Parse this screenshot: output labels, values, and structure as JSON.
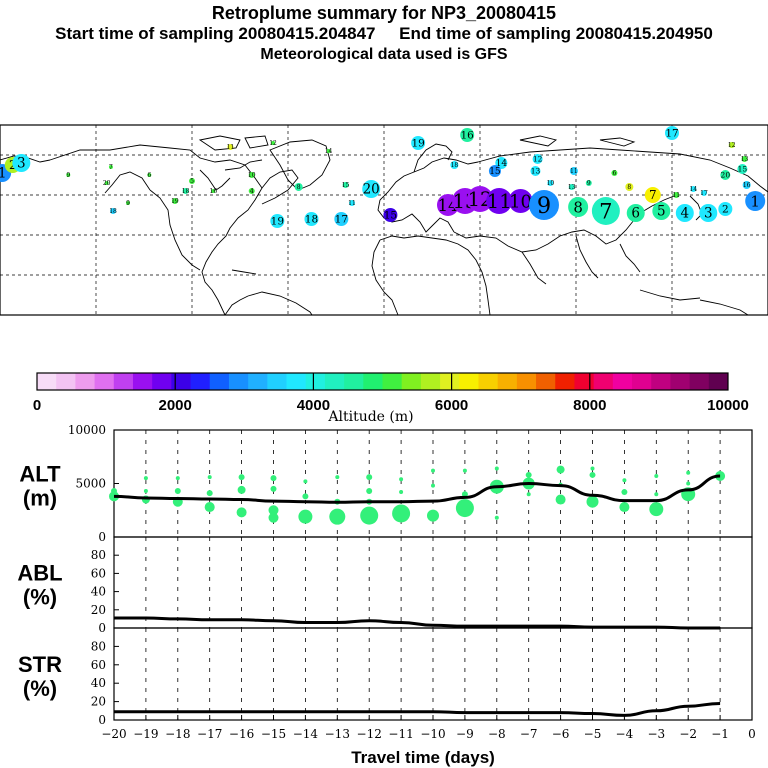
{
  "header": {
    "title": "Retroplume summary for NP3_20080415",
    "sampling": "Start time of sampling 20080415.204847     End time of sampling 20080415.204950",
    "met": "Meteorological data used is GFS"
  },
  "colorbar": {
    "label": "Altitude (m)",
    "ticks": [
      "0",
      "2000",
      "4000",
      "6000",
      "8000",
      "10000"
    ],
    "tick_values": [
      0,
      2000,
      4000,
      6000,
      8000,
      10000
    ],
    "colors": [
      "#f7dcf7",
      "#f3c3f3",
      "#ee9cee",
      "#e070f0",
      "#c040f0",
      "#9a10f0",
      "#7000f0",
      "#3c00e8",
      "#2020ff",
      "#1060ff",
      "#1890ff",
      "#20b0ff",
      "#20d0ff",
      "#20e8ff",
      "#20f0e0",
      "#20f0c0",
      "#20f0a0",
      "#20f070",
      "#40f040",
      "#80f020",
      "#b0f020",
      "#e0f020",
      "#f8f000",
      "#f8d000",
      "#f8b000",
      "#f89000",
      "#f06000",
      "#f02000",
      "#f00030",
      "#f00070",
      "#f000a0",
      "#e00090",
      "#c00080",
      "#a00070",
      "#800060",
      "#600050"
    ]
  },
  "map": {
    "labels": [
      {
        "t": "1",
        "lon": -179,
        "lat": 71,
        "c": "#1890ff",
        "s": 9
      },
      {
        "t": "2",
        "lon": -174,
        "lat": 75,
        "c": "#b0f020",
        "s": 8
      },
      {
        "t": "3",
        "lon": -170,
        "lat": 76,
        "c": "#20e8ff",
        "s": 9
      },
      {
        "t": "4",
        "lon": -62,
        "lat": 62,
        "c": "#40f040",
        "s": 3
      },
      {
        "t": "5",
        "lon": -90,
        "lat": 67,
        "c": "#40f040",
        "s": 3
      },
      {
        "t": "6",
        "lon": -110,
        "lat": 70,
        "c": "#40f040",
        "s": 2
      },
      {
        "t": "7",
        "lon": -128,
        "lat": 74,
        "c": "#40f040",
        "s": 2
      },
      {
        "t": "8",
        "lon": -40,
        "lat": 64,
        "c": "#20f0a0",
        "s": 4
      },
      {
        "t": "9",
        "lon": -148,
        "lat": 70,
        "c": "#40f040",
        "s": 2
      },
      {
        "t": "10",
        "lon": -62,
        "lat": 70,
        "c": "#40f040",
        "s": 3
      },
      {
        "t": "11",
        "lon": -72,
        "lat": 84,
        "c": "#e0f020",
        "s": 3
      },
      {
        "t": "12",
        "lon": -52,
        "lat": 86,
        "c": "#40f040",
        "s": 2
      },
      {
        "t": "14",
        "lon": -26,
        "lat": 82,
        "c": "#40f040",
        "s": 2
      },
      {
        "t": "15",
        "lon": -18,
        "lat": 65,
        "c": "#20f0a0",
        "s": 3
      },
      {
        "t": "16",
        "lon": -80,
        "lat": 62,
        "c": "#40f040",
        "s": 2
      },
      {
        "t": "18",
        "lon": -93,
        "lat": 62,
        "c": "#20f0a0",
        "s": 3
      },
      {
        "t": "19",
        "lon": -98,
        "lat": 57,
        "c": "#40f040",
        "s": 3
      },
      {
        "t": "18",
        "lon": -127,
        "lat": 52,
        "c": "#20d0ff",
        "s": 3
      },
      {
        "t": "11",
        "lon": -15,
        "lat": 56,
        "c": "#20e8ff",
        "s": 3
      },
      {
        "t": "19",
        "lon": -50,
        "lat": 47,
        "c": "#20e8ff",
        "s": 7
      },
      {
        "t": "18",
        "lon": -34,
        "lat": 48,
        "c": "#20e8ff",
        "s": 7
      },
      {
        "t": "17",
        "lon": -20,
        "lat": 48,
        "c": "#20d0ff",
        "s": 7
      },
      {
        "t": "20",
        "lon": -6,
        "lat": 63,
        "c": "#20e8ff",
        "s": 9
      },
      {
        "t": "15",
        "lon": 3,
        "lat": 50,
        "c": "#3c00e8",
        "s": 7
      },
      {
        "t": "14",
        "lon": 30,
        "lat": 55,
        "c": "#9a10f0",
        "s": 11
      },
      {
        "t": "13",
        "lon": 38,
        "lat": 57,
        "c": "#9a10f0",
        "s": 13
      },
      {
        "t": "12",
        "lon": 45,
        "lat": 58,
        "c": "#9a10f0",
        "s": 13
      },
      {
        "t": "11",
        "lon": 54,
        "lat": 57,
        "c": "#7000f0",
        "s": 13
      },
      {
        "t": "10",
        "lon": 64,
        "lat": 57,
        "c": "#7000f0",
        "s": 12
      },
      {
        "t": "9",
        "lon": 75,
        "lat": 55,
        "c": "#1890ff",
        "s": 15
      },
      {
        "t": "8",
        "lon": 91,
        "lat": 54,
        "c": "#20f0a0",
        "s": 10
      },
      {
        "t": "7",
        "lon": 104,
        "lat": 52,
        "c": "#20f0c0",
        "s": 14
      },
      {
        "t": "6",
        "lon": 118,
        "lat": 51,
        "c": "#20f0a0",
        "s": 9
      },
      {
        "t": "5",
        "lon": 130,
        "lat": 52,
        "c": "#20f0a0",
        "s": 9
      },
      {
        "t": "4",
        "lon": 141,
        "lat": 51,
        "c": "#20e8ff",
        "s": 9
      },
      {
        "t": "3",
        "lon": 152,
        "lat": 51,
        "c": "#20e8ff",
        "s": 9
      },
      {
        "t": "2",
        "lon": 160,
        "lat": 53,
        "c": "#20e8ff",
        "s": 7
      },
      {
        "t": "1",
        "lon": 174,
        "lat": 57,
        "c": "#1890ff",
        "s": 10
      },
      {
        "t": "19",
        "lon": 16,
        "lat": 86,
        "c": "#20e8ff",
        "s": 7
      },
      {
        "t": "16",
        "lon": 39,
        "lat": 90,
        "c": "#20f0a0",
        "s": 7
      },
      {
        "t": "18",
        "lon": 33,
        "lat": 75,
        "c": "#20e8ff",
        "s": 4
      },
      {
        "t": "14",
        "lon": 55,
        "lat": 76,
        "c": "#20e8ff",
        "s": 6
      },
      {
        "t": "15",
        "lon": 52,
        "lat": 72,
        "c": "#1890ff",
        "s": 6
      },
      {
        "t": "13",
        "lon": 71,
        "lat": 72,
        "c": "#20e8ff",
        "s": 5
      },
      {
        "t": "12",
        "lon": 72,
        "lat": 78,
        "c": "#20e8ff",
        "s": 5
      },
      {
        "t": "11",
        "lon": 89,
        "lat": 72,
        "c": "#20d0ff",
        "s": 4
      },
      {
        "t": "17",
        "lon": 135,
        "lat": 91,
        "c": "#20e8ff",
        "s": 7
      },
      {
        "t": "12",
        "lon": 163,
        "lat": 85,
        "c": "#b0f020",
        "s": 3
      },
      {
        "t": "20",
        "lon": 160,
        "lat": 70,
        "c": "#20f0a0",
        "s": 5
      },
      {
        "t": "13",
        "lon": 169,
        "lat": 78,
        "c": "#40f040",
        "s": 3
      },
      {
        "t": "15",
        "lon": 168,
        "lat": 73,
        "c": "#20f0c0",
        "s": 5
      },
      {
        "t": "16",
        "lon": 170,
        "lat": 65,
        "c": "#20d0ff",
        "s": 4
      },
      {
        "t": "8",
        "lon": 115,
        "lat": 64,
        "c": "#e0f020",
        "s": 4
      },
      {
        "t": "7",
        "lon": 126,
        "lat": 60,
        "c": "#f8f000",
        "s": 8
      },
      {
        "t": "6",
        "lon": 108,
        "lat": 71,
        "c": "#40f040",
        "s": 3
      },
      {
        "t": "9",
        "lon": 96,
        "lat": 66,
        "c": "#20f0a0",
        "s": 3
      },
      {
        "t": "10",
        "lon": 78,
        "lat": 66,
        "c": "#20e8ff",
        "s": 3
      },
      {
        "t": "13",
        "lon": 88,
        "lat": 64,
        "c": "#20f0c0",
        "s": 3
      },
      {
        "t": "14",
        "lon": 145,
        "lat": 63,
        "c": "#20e8ff",
        "s": 3
      },
      {
        "t": "17",
        "lon": 150,
        "lat": 61,
        "c": "#20e8ff",
        "s": 3
      },
      {
        "t": "11",
        "lon": 137,
        "lat": 60,
        "c": "#40f040",
        "s": 3
      },
      {
        "t": "9",
        "lon": -120,
        "lat": 56,
        "c": "#40f040",
        "s": 2
      },
      {
        "t": "20",
        "lon": -130,
        "lat": 66,
        "c": "#40f040",
        "s": 2
      }
    ]
  },
  "chart_data": [
    {
      "type": "scatter+line",
      "panel": "ALT",
      "ylabel": "ALT\n(m)",
      "ylabel_line1": "ALT",
      "ylabel_line2": "(m)",
      "ylim": [
        0,
        10000
      ],
      "xlim": [
        -20,
        0
      ],
      "yticks": [
        "10000",
        "5000",
        "0"
      ],
      "ytick_values": [
        10000,
        5000,
        0
      ],
      "median_x": [
        -20,
        -19,
        -18,
        -17,
        -16,
        -15,
        -14,
        -13,
        -12,
        -11,
        -10,
        -9,
        -8,
        -7,
        -6,
        -5,
        -4,
        -3,
        -2,
        -1
      ],
      "median_y": [
        3800,
        3650,
        3600,
        3550,
        3500,
        3350,
        3300,
        3250,
        3300,
        3300,
        3350,
        3700,
        4700,
        5000,
        4800,
        3900,
        3400,
        3400,
        4400,
        5700
      ],
      "points": [
        {
          "x": -20,
          "y": 3800,
          "r": 5
        },
        {
          "x": -20,
          "y": 4300,
          "r": 3
        },
        {
          "x": -19,
          "y": 3500,
          "r": 4
        },
        {
          "x": -19,
          "y": 5500,
          "r": 2
        },
        {
          "x": -19,
          "y": 4300,
          "r": 2
        },
        {
          "x": -18,
          "y": 3300,
          "r": 5
        },
        {
          "x": -18,
          "y": 4300,
          "r": 3
        },
        {
          "x": -18,
          "y": 5500,
          "r": 2
        },
        {
          "x": -17,
          "y": 2800,
          "r": 5
        },
        {
          "x": -17,
          "y": 4100,
          "r": 3
        },
        {
          "x": -17,
          "y": 5600,
          "r": 2
        },
        {
          "x": -16,
          "y": 2300,
          "r": 5
        },
        {
          "x": -16,
          "y": 4400,
          "r": 4
        },
        {
          "x": -16,
          "y": 5600,
          "r": 3
        },
        {
          "x": -15,
          "y": 2500,
          "r": 5
        },
        {
          "x": -15,
          "y": 1800,
          "r": 5
        },
        {
          "x": -15,
          "y": 4500,
          "r": 3
        },
        {
          "x": -15,
          "y": 5500,
          "r": 3
        },
        {
          "x": -14,
          "y": 1900,
          "r": 7
        },
        {
          "x": -14,
          "y": 3800,
          "r": 3
        },
        {
          "x": -14,
          "y": 5200,
          "r": 2
        },
        {
          "x": -13,
          "y": 1900,
          "r": 8
        },
        {
          "x": -13,
          "y": 3300,
          "r": 3
        },
        {
          "x": -13,
          "y": 5600,
          "r": 2
        },
        {
          "x": -12,
          "y": 2000,
          "r": 9
        },
        {
          "x": -12,
          "y": 3300,
          "r": 3
        },
        {
          "x": -12,
          "y": 4300,
          "r": 3
        },
        {
          "x": -12,
          "y": 5600,
          "r": 3
        },
        {
          "x": -11,
          "y": 2200,
          "r": 9
        },
        {
          "x": -11,
          "y": 4200,
          "r": 2
        },
        {
          "x": -11,
          "y": 5400,
          "r": 2
        },
        {
          "x": -10,
          "y": 2000,
          "r": 6
        },
        {
          "x": -10,
          "y": 4800,
          "r": 2
        },
        {
          "x": -10,
          "y": 6200,
          "r": 2
        },
        {
          "x": -9,
          "y": 2700,
          "r": 9
        },
        {
          "x": -9,
          "y": 4000,
          "r": 3
        },
        {
          "x": -9,
          "y": 6200,
          "r": 2
        },
        {
          "x": -8,
          "y": 4700,
          "r": 7
        },
        {
          "x": -8,
          "y": 6400,
          "r": 2
        },
        {
          "x": -8,
          "y": 1800,
          "r": 2
        },
        {
          "x": -7,
          "y": 5000,
          "r": 6
        },
        {
          "x": -7,
          "y": 5800,
          "r": 3
        },
        {
          "x": -7,
          "y": 4000,
          "r": 2
        },
        {
          "x": -6,
          "y": 3500,
          "r": 5
        },
        {
          "x": -6,
          "y": 6300,
          "r": 4
        },
        {
          "x": -6,
          "y": 4900,
          "r": 2
        },
        {
          "x": -5,
          "y": 3300,
          "r": 6
        },
        {
          "x": -5,
          "y": 5800,
          "r": 3
        },
        {
          "x": -5,
          "y": 6400,
          "r": 2
        },
        {
          "x": -4,
          "y": 2800,
          "r": 5
        },
        {
          "x": -4,
          "y": 4200,
          "r": 3
        },
        {
          "x": -4,
          "y": 5300,
          "r": 2
        },
        {
          "x": -3,
          "y": 2600,
          "r": 7
        },
        {
          "x": -3,
          "y": 4000,
          "r": 2
        },
        {
          "x": -3,
          "y": 5700,
          "r": 2
        },
        {
          "x": -2,
          "y": 4000,
          "r": 7
        },
        {
          "x": -2,
          "y": 5000,
          "r": 2
        },
        {
          "x": -2,
          "y": 6000,
          "r": 2
        },
        {
          "x": -1,
          "y": 5700,
          "r": 5
        }
      ]
    },
    {
      "type": "line",
      "panel": "ABL",
      "ylabel_line1": "ABL",
      "ylabel_line2": "(%)",
      "ylim": [
        0,
        100
      ],
      "yticks": [
        "80",
        "60",
        "40",
        "20",
        "0"
      ],
      "ytick_values": [
        80,
        60,
        40,
        20,
        0
      ],
      "x": [
        -20,
        -19,
        -18,
        -17,
        -16,
        -15,
        -14,
        -13,
        -12,
        -11,
        -10,
        -9,
        -8,
        -7,
        -6,
        -5,
        -4,
        -3,
        -2,
        -1
      ],
      "y": [
        11,
        11,
        10,
        9,
        9,
        8,
        6,
        6,
        8,
        6,
        3,
        2,
        2,
        2,
        2,
        1,
        1,
        1,
        0,
        0
      ]
    },
    {
      "type": "line",
      "panel": "STR",
      "ylabel_line1": "STR",
      "ylabel_line2": "(%)",
      "ylim": [
        0,
        100
      ],
      "yticks": [
        "80",
        "60",
        "40",
        "20",
        "0"
      ],
      "ytick_values": [
        80,
        60,
        40,
        20,
        0
      ],
      "x": [
        -20,
        -19,
        -18,
        -17,
        -16,
        -15,
        -14,
        -13,
        -12,
        -11,
        -10,
        -9,
        -8,
        -7,
        -6,
        -5,
        -4,
        -3,
        -2,
        -1
      ],
      "y": [
        9,
        9,
        9,
        9,
        9,
        9,
        9,
        9,
        9,
        9,
        9,
        8,
        8,
        8,
        8,
        7,
        5,
        10,
        15,
        18
      ],
      "xlabel": "Travel time (days)",
      "xticks": [
        "−20",
        "−19",
        "−18",
        "−17",
        "−16",
        "−15",
        "−14",
        "−13",
        "−12",
        "−11",
        "−10",
        "−9",
        "−8",
        "−7",
        "−6",
        "−5",
        "−4",
        "−3",
        "−2",
        "−1",
        "0"
      ],
      "xtick_values": [
        -20,
        -19,
        -18,
        -17,
        -16,
        -15,
        -14,
        -13,
        -12,
        -11,
        -10,
        -9,
        -8,
        -7,
        -6,
        -5,
        -4,
        -3,
        -2,
        -1,
        0
      ]
    }
  ]
}
